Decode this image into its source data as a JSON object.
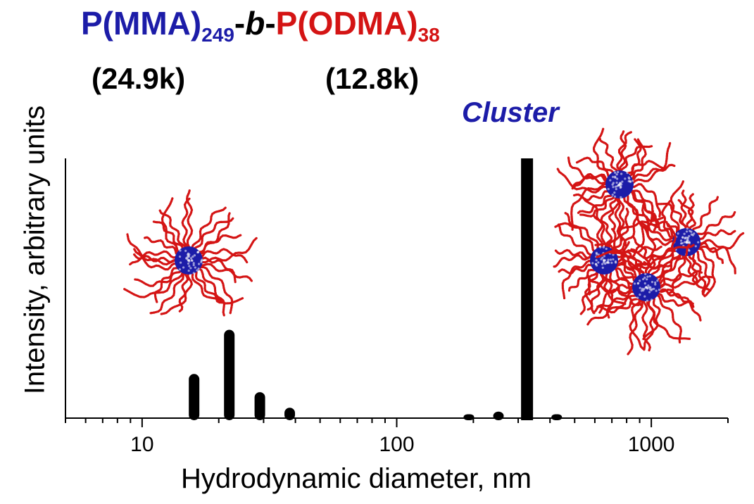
{
  "colors": {
    "blue": "#1c1ca8",
    "red": "#d41414",
    "black": "#000000"
  },
  "title": {
    "part1": "P(MMA)",
    "sub1": "249",
    "dash1": "-",
    "b": "b",
    "dash2": "-",
    "part2": "P(ODMA)",
    "sub2": "38"
  },
  "mw": {
    "block1": "(24.9k)",
    "block2": "(12.8k)"
  },
  "annotation": "Cluster",
  "chart_data": {
    "type": "bar",
    "xscale": "log",
    "xlim": [
      5,
      2000
    ],
    "ylim": [
      0,
      100
    ],
    "xlabel": "Hydrodynamic diameter, nm",
    "ylabel": "Intensity, arbitrary units",
    "xticks": [
      10,
      100,
      1000
    ],
    "xticklabels": [
      "10",
      "100",
      "1000"
    ],
    "x": [
      16,
      22,
      29,
      38,
      192,
      251,
      325,
      425
    ],
    "values": [
      17,
      34,
      10,
      4,
      1.5,
      2.5,
      100,
      1.5
    ],
    "grid": false,
    "legend": "none"
  }
}
